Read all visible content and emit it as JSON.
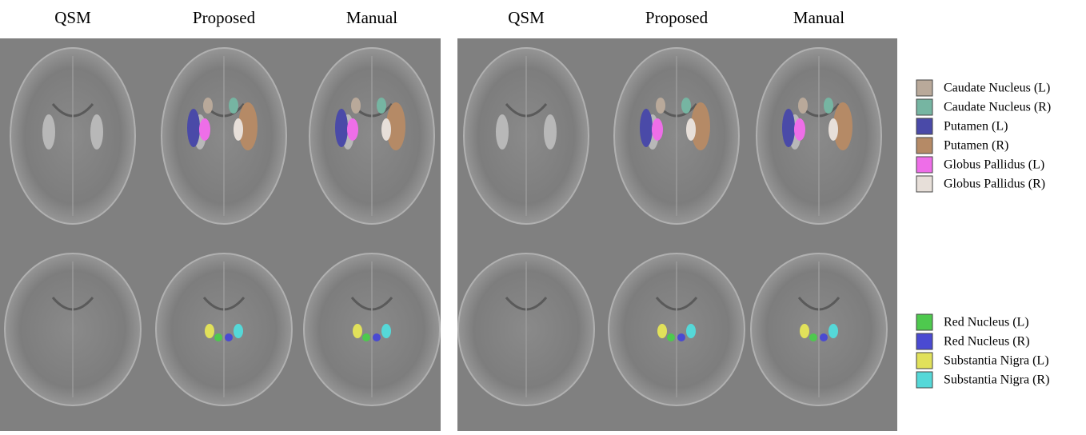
{
  "panels": [
    {
      "columns": [
        "QSM",
        "Proposed",
        "Manual"
      ]
    },
    {
      "columns": [
        "QSM",
        "Proposed",
        "Manual"
      ]
    }
  ],
  "legend": [
    {
      "entries": [
        {
          "label": "Caudate Nucleus (L)",
          "color": "#b9a99a"
        },
        {
          "label": "Caudate Nucleus (R)",
          "color": "#76b5a2"
        },
        {
          "label": "Putamen (L)",
          "color": "#4a4aa8"
        },
        {
          "label": "Putamen (R)",
          "color": "#b58a66"
        },
        {
          "label": "Globus Pallidus (L)",
          "color": "#ee6ee8"
        },
        {
          "label": "Globus Pallidus (R)",
          "color": "#e7dfd9"
        }
      ]
    },
    {
      "entries": [
        {
          "label": "Red Nucleus (L)",
          "color": "#4ec94e"
        },
        {
          "label": "Red Nucleus (R)",
          "color": "#4a4ad2"
        },
        {
          "label": "Substantia Nigra (L)",
          "color": "#e1e15a"
        },
        {
          "label": "Substantia Nigra (R)",
          "color": "#55d8d8"
        }
      ]
    }
  ]
}
